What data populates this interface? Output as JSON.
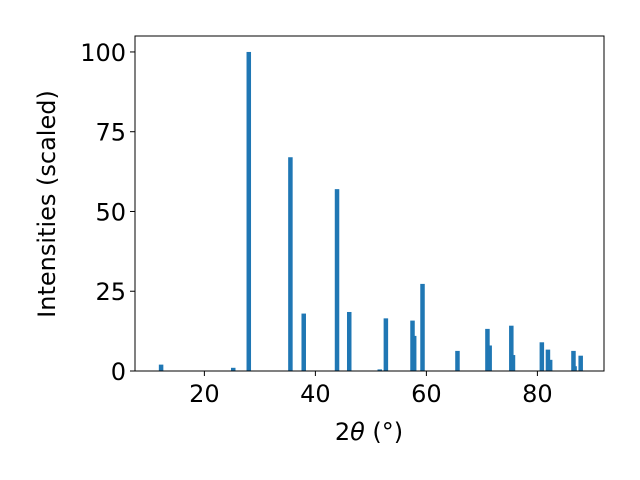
{
  "chart_data": {
    "type": "bar",
    "xlabel_main": "2",
    "xlabel_theta": "θ",
    "xlabel_unit": " (°)",
    "ylabel": "Intensities (scaled)",
    "xlim": [
      7.5,
      92.0
    ],
    "ylim": [
      0,
      105
    ],
    "xticks": [
      20,
      40,
      60,
      80
    ],
    "yticks": [
      0,
      25,
      50,
      75,
      100
    ],
    "bar_color": "#1f77b4",
    "grid": false,
    "x": [
      12.2,
      25.2,
      28.0,
      35.5,
      37.9,
      43.9,
      46.1,
      51.6,
      52.7,
      57.5,
      57.8,
      59.3,
      65.6,
      71.0,
      71.4,
      75.3,
      75.6,
      80.8,
      81.9,
      82.3,
      86.5,
      86.7,
      87.8
    ],
    "values": [
      2.0,
      1.0,
      100.0,
      67.0,
      18.0,
      57.0,
      18.5,
      0.5,
      16.5,
      15.8,
      11.0,
      27.3,
      6.3,
      13.2,
      8.0,
      14.2,
      5.0,
      9.0,
      6.7,
      3.5,
      6.3,
      1.5,
      4.8
    ]
  }
}
